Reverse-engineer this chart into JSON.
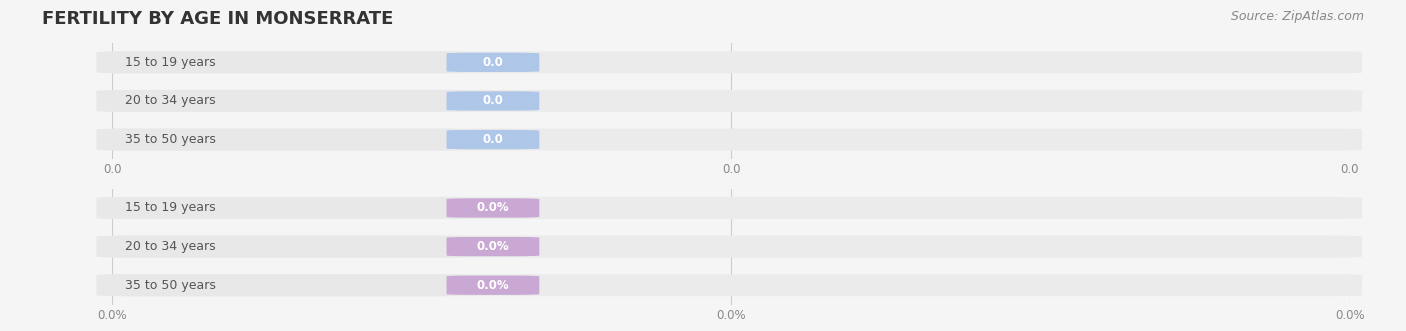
{
  "title": "FERTILITY BY AGE IN MONSERRATE",
  "source_text": "Source: ZipAtlas.com",
  "top_section": {
    "categories": [
      "15 to 19 years",
      "20 to 34 years",
      "35 to 50 years"
    ],
    "values": [
      0.0,
      0.0,
      0.0
    ],
    "bar_color": "#aec6e8",
    "label_color": "#aec6e8",
    "text_color": "#555555",
    "value_label_color": "#ffffff",
    "x_tick_labels": [
      "0.0",
      "0.0",
      "0.0"
    ],
    "x_ticks": [
      0.0,
      0.5,
      1.0
    ]
  },
  "bottom_section": {
    "categories": [
      "15 to 19 years",
      "20 to 34 years",
      "35 to 50 years"
    ],
    "values": [
      0.0,
      0.0,
      0.0
    ],
    "bar_color": "#c9a8d4",
    "label_color": "#c9a8d4",
    "text_color": "#555555",
    "value_label_color": "#ffffff",
    "x_tick_labels": [
      "0.0%",
      "0.0%",
      "0.0%"
    ],
    "x_ticks": [
      0.0,
      0.5,
      1.0
    ]
  },
  "bg_color": "#f5f5f5",
  "bar_bg_color": "#ebebeb",
  "title_fontsize": 13,
  "label_fontsize": 9,
  "tick_fontsize": 8.5,
  "source_fontsize": 9
}
